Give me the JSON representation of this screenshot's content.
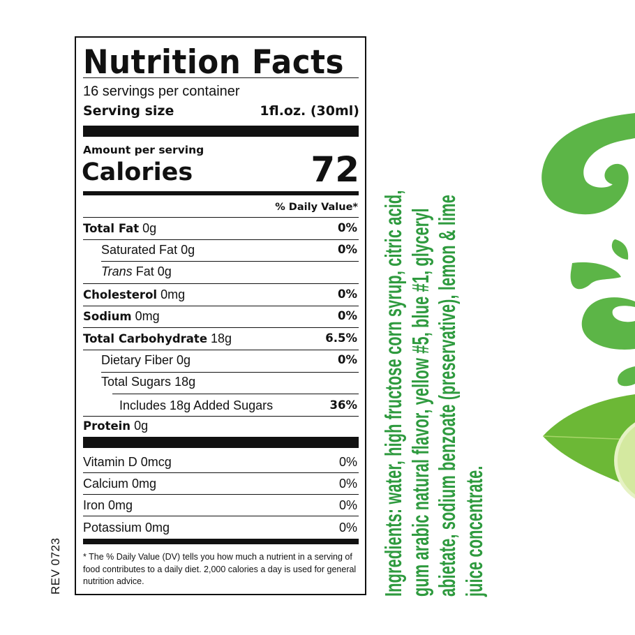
{
  "label": {
    "title": "Nutrition Facts",
    "servings": "16 servings per container",
    "serving_size_label": "Serving size",
    "serving_size_value": "1fl.oz. (30ml)",
    "amount_per_serving": "Amount per serving",
    "calories_label": "Calories",
    "calories_value": "72",
    "dv_header": "% Daily Value*",
    "nutrients": [
      {
        "name": "Total Fat",
        "amount": "0g",
        "dv": "0%"
      },
      {
        "name": "Saturated Fat",
        "amount": "0g",
        "dv": "0%"
      },
      {
        "name": "Trans",
        "amount": "Fat 0g",
        "dv": ""
      },
      {
        "name": "Cholesterol",
        "amount": "0mg",
        "dv": "0%"
      },
      {
        "name": "Sodium",
        "amount": "0mg",
        "dv": "0%"
      },
      {
        "name": "Total Carbohydrate",
        "amount": "18g",
        "dv": "6.5%"
      },
      {
        "name": "Dietary Fiber",
        "amount": "0g",
        "dv": "0%"
      },
      {
        "name": "Total Sugars",
        "amount": "18g",
        "dv": ""
      },
      {
        "name": "Includes 18g Added Sugars",
        "amount": "",
        "dv": "36%"
      },
      {
        "name": "Protein",
        "amount": "0g",
        "dv": ""
      }
    ],
    "vitamins": [
      {
        "name": "Vitamin D 0mcg",
        "dv": "0%"
      },
      {
        "name": "Calcium 0mg",
        "dv": "0%"
      },
      {
        "name": "Iron 0mg",
        "dv": "0%"
      },
      {
        "name": "Potassium 0mg",
        "dv": "0%"
      }
    ],
    "footnote": "* The % Daily Value (DV) tells you how much a nutrient in a serving of food contributes to a daily diet. 2,000 calories a day is used for general nutrition advice."
  },
  "revision": "REV 0723",
  "ingredients": {
    "lines": [
      "Ingredients: water, high fructose corn syrup, citric acid,",
      "gum arabic natural flavor, yellow #5, blue #1, glyceryl",
      "abietate, sodium benzoate (preservative), lemon & lime",
      "juice concentrate."
    ],
    "color": "#2e9a3e"
  },
  "decoration": {
    "splash_color": "#5cb547",
    "icons": [
      "splash-swirl",
      "lime-leaf",
      "lime-slice"
    ]
  }
}
